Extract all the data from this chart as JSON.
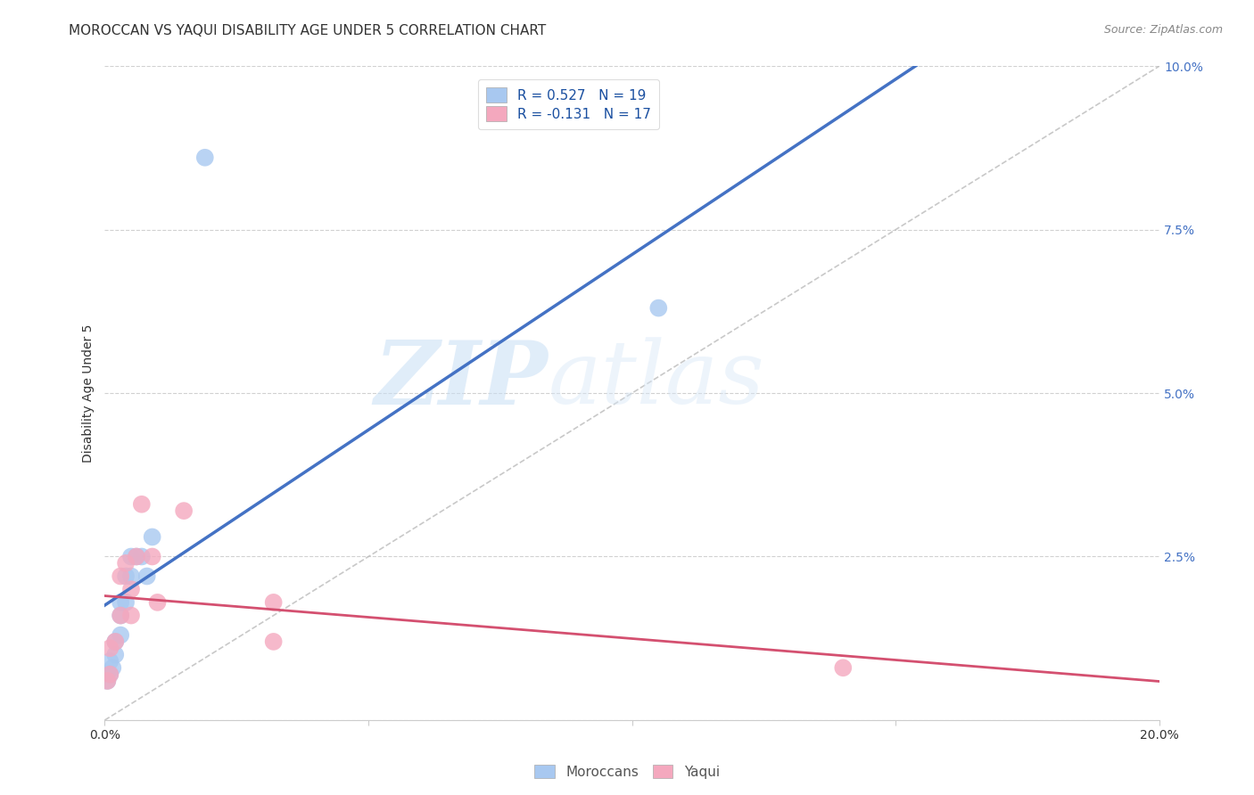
{
  "title": "MOROCCAN VS YAQUI DISABILITY AGE UNDER 5 CORRELATION CHART",
  "source": "Source: ZipAtlas.com",
  "ylabel": "Disability Age Under 5",
  "moroccan_R": 0.527,
  "moroccan_N": 19,
  "yaqui_R": -0.131,
  "yaqui_N": 17,
  "moroccan_color": "#a8c8f0",
  "moroccan_line_color": "#4472c4",
  "yaqui_color": "#f4a8be",
  "yaqui_line_color": "#d45070",
  "background": "#ffffff",
  "grid_color": "#cccccc",
  "xlim": [
    0.0,
    0.2
  ],
  "ylim": [
    0.0,
    0.1
  ],
  "xticks": [
    0.0,
    0.05,
    0.1,
    0.15,
    0.2
  ],
  "yticks_right": [
    0.0,
    0.025,
    0.05,
    0.075,
    0.1
  ],
  "moroccan_x": [
    0.0005,
    0.001,
    0.001,
    0.0015,
    0.002,
    0.002,
    0.003,
    0.003,
    0.003,
    0.004,
    0.004,
    0.005,
    0.005,
    0.006,
    0.007,
    0.008,
    0.009,
    0.019,
    0.105
  ],
  "moroccan_y": [
    0.006,
    0.007,
    0.009,
    0.008,
    0.01,
    0.012,
    0.013,
    0.016,
    0.018,
    0.018,
    0.022,
    0.022,
    0.025,
    0.025,
    0.025,
    0.022,
    0.028,
    0.086,
    0.063
  ],
  "yaqui_x": [
    0.0005,
    0.001,
    0.001,
    0.002,
    0.003,
    0.003,
    0.004,
    0.005,
    0.005,
    0.006,
    0.007,
    0.009,
    0.01,
    0.015,
    0.032,
    0.032,
    0.14
  ],
  "yaqui_y": [
    0.006,
    0.007,
    0.011,
    0.012,
    0.016,
    0.022,
    0.024,
    0.016,
    0.02,
    0.025,
    0.033,
    0.025,
    0.018,
    0.032,
    0.012,
    0.018,
    0.008
  ],
  "ref_line_x": [
    0.0,
    0.2
  ],
  "ref_line_y": [
    0.0,
    0.1
  ],
  "watermark_zip": "ZIP",
  "watermark_atlas": "atlas",
  "title_fontsize": 11,
  "axis_label_fontsize": 10,
  "tick_fontsize": 10,
  "legend_fontsize": 11,
  "source_fontsize": 9
}
